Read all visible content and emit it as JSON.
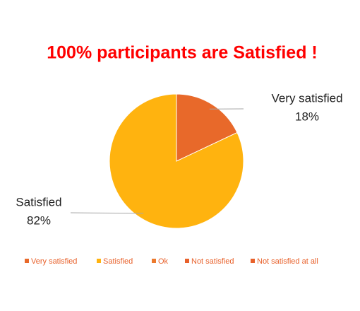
{
  "chart_data": {
    "type": "pie",
    "title": "100% participants are Satisfied !",
    "categories": [
      "Very satisfied",
      "Satisfied",
      "Ok",
      "Not satisfied",
      "Not satisfied at all"
    ],
    "values": [
      18,
      82,
      0,
      0,
      0
    ],
    "value_labels": [
      "18%",
      "82%",
      null,
      null,
      null
    ],
    "colors": [
      "#e8692a",
      "#ffb30f",
      "#ec7a2e",
      "#e8612b",
      "#e8612b"
    ],
    "legend": "bottom"
  }
}
